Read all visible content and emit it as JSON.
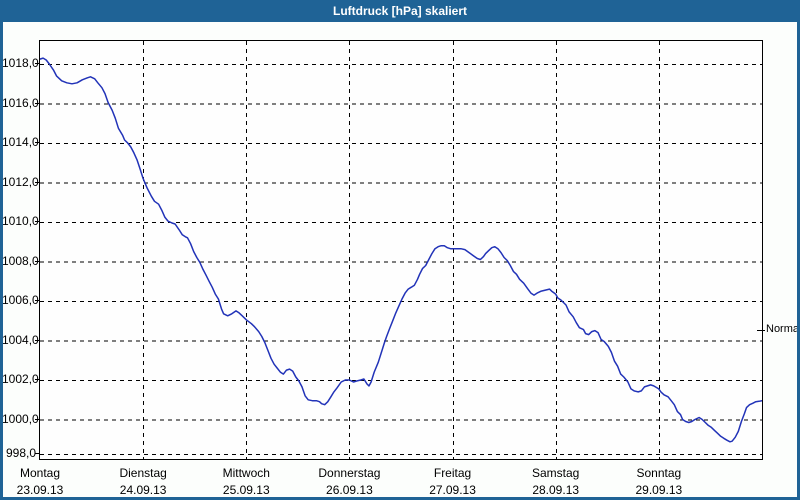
{
  "window": {
    "title": "Luftdruck [hPa] skaliert"
  },
  "colors": {
    "titlebar": "#1f6396",
    "line": "#2233b8",
    "content_bg": "#fcfefc",
    "plot_bg": "#fefefe"
  },
  "chart_data": {
    "type": "line",
    "title": "Luftdruck [hPa] skaliert",
    "ylabel": "hPa",
    "xlabel": "",
    "grid": "dashed",
    "legend_position": "none",
    "ylim": [
      998,
      1019.2
    ],
    "x_range_days": [
      0,
      7
    ],
    "y_ticks": [
      "1018,0",
      "1016,0",
      "1014,0",
      "1012,0",
      "1010,0",
      "1008,0",
      "1006,0",
      "1004,0",
      "1002,0",
      "1000,0",
      "998,0"
    ],
    "y_tick_values": [
      1018,
      1016,
      1014,
      1012,
      1010,
      1008,
      1006,
      1004,
      1002,
      1000,
      998
    ],
    "days": [
      {
        "name": "Montag",
        "date": "23.09.13"
      },
      {
        "name": "Dienstag",
        "date": "24.09.13"
      },
      {
        "name": "Mittwoch",
        "date": "25.09.13"
      },
      {
        "name": "Donnerstag",
        "date": "26.09.13"
      },
      {
        "name": "Freitag",
        "date": "27.09.13"
      },
      {
        "name": "Samstag",
        "date": "28.09.13"
      },
      {
        "name": "Sonntag",
        "date": "29.09.13"
      }
    ],
    "normal_marker": {
      "label": "Normal",
      "value": 1004.5
    },
    "series": [
      {
        "name": "Luftdruck",
        "unit": "hPa",
        "color": "#2233b8",
        "points": [
          [
            0.0,
            1018.25
          ],
          [
            0.03,
            1018.3
          ],
          [
            0.06,
            1018.2
          ],
          [
            0.09,
            1018.0
          ],
          [
            0.13,
            1017.7
          ],
          [
            0.16,
            1017.4
          ],
          [
            0.21,
            1017.15
          ],
          [
            0.26,
            1017.05
          ],
          [
            0.31,
            1017.0
          ],
          [
            0.36,
            1017.05
          ],
          [
            0.41,
            1017.2
          ],
          [
            0.46,
            1017.3
          ],
          [
            0.49,
            1017.35
          ],
          [
            0.53,
            1017.25
          ],
          [
            0.56,
            1017.05
          ],
          [
            0.6,
            1016.8
          ],
          [
            0.63,
            1016.5
          ],
          [
            0.66,
            1016.05
          ],
          [
            0.7,
            1015.65
          ],
          [
            0.73,
            1015.25
          ],
          [
            0.76,
            1014.75
          ],
          [
            0.8,
            1014.4
          ],
          [
            0.82,
            1014.15
          ],
          [
            0.85,
            1014.0
          ],
          [
            0.88,
            1013.8
          ],
          [
            0.91,
            1013.5
          ],
          [
            0.94,
            1013.15
          ],
          [
            0.97,
            1012.7
          ],
          [
            1.0,
            1012.2
          ],
          [
            1.04,
            1011.7
          ],
          [
            1.08,
            1011.3
          ],
          [
            1.11,
            1011.05
          ],
          [
            1.15,
            1010.9
          ],
          [
            1.18,
            1010.6
          ],
          [
            1.21,
            1010.25
          ],
          [
            1.24,
            1010.05
          ],
          [
            1.28,
            1009.95
          ],
          [
            1.31,
            1009.9
          ],
          [
            1.35,
            1009.6
          ],
          [
            1.38,
            1009.35
          ],
          [
            1.41,
            1009.25
          ],
          [
            1.43,
            1009.2
          ],
          [
            1.46,
            1008.9
          ],
          [
            1.49,
            1008.5
          ],
          [
            1.52,
            1008.2
          ],
          [
            1.55,
            1007.95
          ],
          [
            1.58,
            1007.6
          ],
          [
            1.61,
            1007.3
          ],
          [
            1.64,
            1007.0
          ],
          [
            1.67,
            1006.7
          ],
          [
            1.7,
            1006.35
          ],
          [
            1.73,
            1006.1
          ],
          [
            1.76,
            1005.6
          ],
          [
            1.78,
            1005.35
          ],
          [
            1.82,
            1005.25
          ],
          [
            1.86,
            1005.35
          ],
          [
            1.9,
            1005.5
          ],
          [
            1.93,
            1005.4
          ],
          [
            1.96,
            1005.25
          ],
          [
            2.0,
            1005.05
          ],
          [
            2.05,
            1004.85
          ],
          [
            2.08,
            1004.7
          ],
          [
            2.12,
            1004.45
          ],
          [
            2.15,
            1004.2
          ],
          [
            2.18,
            1003.9
          ],
          [
            2.21,
            1003.5
          ],
          [
            2.24,
            1003.1
          ],
          [
            2.27,
            1002.8
          ],
          [
            2.3,
            1002.6
          ],
          [
            2.33,
            1002.4
          ],
          [
            2.36,
            1002.3
          ],
          [
            2.39,
            1002.5
          ],
          [
            2.42,
            1002.55
          ],
          [
            2.45,
            1002.45
          ],
          [
            2.48,
            1002.15
          ],
          [
            2.51,
            1001.95
          ],
          [
            2.54,
            1001.65
          ],
          [
            2.57,
            1001.2
          ],
          [
            2.6,
            1001.0
          ],
          [
            2.64,
            1000.95
          ],
          [
            2.68,
            1000.95
          ],
          [
            2.71,
            1000.9
          ],
          [
            2.73,
            1000.8
          ],
          [
            2.76,
            1000.75
          ],
          [
            2.79,
            1000.9
          ],
          [
            2.82,
            1001.15
          ],
          [
            2.85,
            1001.4
          ],
          [
            2.88,
            1001.6
          ],
          [
            2.92,
            1001.9
          ],
          [
            2.96,
            1002.0
          ],
          [
            3.0,
            1002.0
          ],
          [
            3.04,
            1001.9
          ],
          [
            3.07,
            1001.95
          ],
          [
            3.11,
            1002.0
          ],
          [
            3.14,
            1002.05
          ],
          [
            3.17,
            1001.8
          ],
          [
            3.19,
            1001.7
          ],
          [
            3.21,
            1001.9
          ],
          [
            3.24,
            1002.4
          ],
          [
            3.28,
            1002.9
          ],
          [
            3.31,
            1003.4
          ],
          [
            3.34,
            1003.9
          ],
          [
            3.36,
            1004.2
          ],
          [
            3.39,
            1004.6
          ],
          [
            3.42,
            1005.0
          ],
          [
            3.45,
            1005.4
          ],
          [
            3.48,
            1005.75
          ],
          [
            3.51,
            1006.1
          ],
          [
            3.54,
            1006.4
          ],
          [
            3.57,
            1006.6
          ],
          [
            3.6,
            1006.7
          ],
          [
            3.63,
            1006.8
          ],
          [
            3.66,
            1007.1
          ],
          [
            3.68,
            1007.35
          ],
          [
            3.71,
            1007.65
          ],
          [
            3.74,
            1007.8
          ],
          [
            3.77,
            1008.1
          ],
          [
            3.8,
            1008.4
          ],
          [
            3.83,
            1008.65
          ],
          [
            3.86,
            1008.75
          ],
          [
            3.89,
            1008.8
          ],
          [
            3.92,
            1008.8
          ],
          [
            3.95,
            1008.7
          ],
          [
            3.98,
            1008.65
          ],
          [
            4.0,
            1008.65
          ],
          [
            4.04,
            1008.65
          ],
          [
            4.08,
            1008.65
          ],
          [
            4.12,
            1008.6
          ],
          [
            4.16,
            1008.45
          ],
          [
            4.2,
            1008.3
          ],
          [
            4.24,
            1008.15
          ],
          [
            4.27,
            1008.1
          ],
          [
            4.3,
            1008.25
          ],
          [
            4.32,
            1008.4
          ],
          [
            4.35,
            1008.55
          ],
          [
            4.38,
            1008.7
          ],
          [
            4.41,
            1008.75
          ],
          [
            4.44,
            1008.65
          ],
          [
            4.47,
            1008.45
          ],
          [
            4.5,
            1008.2
          ],
          [
            4.53,
            1008.05
          ],
          [
            4.56,
            1007.8
          ],
          [
            4.59,
            1007.5
          ],
          [
            4.62,
            1007.35
          ],
          [
            4.65,
            1007.1
          ],
          [
            4.69,
            1006.9
          ],
          [
            4.73,
            1006.6
          ],
          [
            4.76,
            1006.4
          ],
          [
            4.79,
            1006.3
          ],
          [
            4.82,
            1006.4
          ],
          [
            4.86,
            1006.5
          ],
          [
            4.9,
            1006.55
          ],
          [
            4.94,
            1006.6
          ],
          [
            4.96,
            1006.5
          ],
          [
            5.0,
            1006.35
          ],
          [
            5.02,
            1006.15
          ],
          [
            5.05,
            1006.05
          ],
          [
            5.1,
            1005.8
          ],
          [
            5.13,
            1005.45
          ],
          [
            5.17,
            1005.2
          ],
          [
            5.2,
            1004.9
          ],
          [
            5.23,
            1004.65
          ],
          [
            5.27,
            1004.55
          ],
          [
            5.29,
            1004.35
          ],
          [
            5.32,
            1004.3
          ],
          [
            5.35,
            1004.45
          ],
          [
            5.38,
            1004.5
          ],
          [
            5.41,
            1004.4
          ],
          [
            5.44,
            1004.05
          ],
          [
            5.47,
            1003.95
          ],
          [
            5.51,
            1003.7
          ],
          [
            5.54,
            1003.4
          ],
          [
            5.57,
            1002.95
          ],
          [
            5.6,
            1002.7
          ],
          [
            5.63,
            1002.3
          ],
          [
            5.66,
            1002.15
          ],
          [
            5.7,
            1001.9
          ],
          [
            5.73,
            1001.55
          ],
          [
            5.76,
            1001.45
          ],
          [
            5.8,
            1001.4
          ],
          [
            5.83,
            1001.45
          ],
          [
            5.86,
            1001.65
          ],
          [
            5.89,
            1001.7
          ],
          [
            5.92,
            1001.75
          ],
          [
            5.95,
            1001.7
          ],
          [
            6.0,
            1001.55
          ],
          [
            6.02,
            1001.4
          ],
          [
            6.05,
            1001.25
          ],
          [
            6.09,
            1001.15
          ],
          [
            6.12,
            1000.95
          ],
          [
            6.15,
            1000.75
          ],
          [
            6.18,
            1000.4
          ],
          [
            6.21,
            1000.25
          ],
          [
            6.23,
            1000.0
          ],
          [
            6.26,
            999.9
          ],
          [
            6.29,
            999.85
          ],
          [
            6.32,
            999.9
          ],
          [
            6.35,
            1000.0
          ],
          [
            6.39,
            1000.1
          ],
          [
            6.42,
            1000.0
          ],
          [
            6.45,
            999.85
          ],
          [
            6.48,
            999.7
          ],
          [
            6.51,
            999.6
          ],
          [
            6.54,
            999.45
          ],
          [
            6.57,
            999.3
          ],
          [
            6.6,
            999.15
          ],
          [
            6.63,
            999.05
          ],
          [
            6.66,
            998.95
          ],
          [
            6.69,
            998.87
          ],
          [
            6.71,
            998.9
          ],
          [
            6.74,
            999.1
          ],
          [
            6.77,
            999.4
          ],
          [
            6.8,
            999.9
          ],
          [
            6.83,
            1000.3
          ],
          [
            6.85,
            1000.6
          ],
          [
            6.88,
            1000.75
          ],
          [
            6.91,
            1000.82
          ],
          [
            6.94,
            1000.9
          ],
          [
            6.97,
            1000.92
          ],
          [
            7.0,
            1000.95
          ]
        ]
      }
    ]
  }
}
